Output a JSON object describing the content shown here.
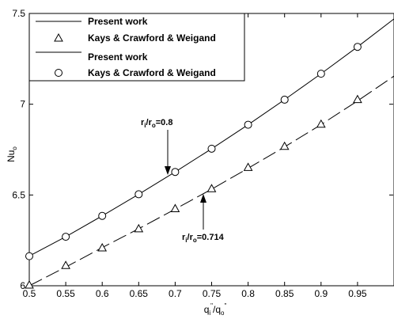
{
  "chart_data": {
    "type": "line",
    "xlabel": {
      "main": "q",
      "sub1": "i",
      "sup1": "\"",
      "sep": "/q",
      "sub2": "o",
      "sup2": "\""
    },
    "ylabel": {
      "main": "Nu",
      "sub": "o"
    },
    "xlim": [
      0.5,
      1.0
    ],
    "ylim": [
      6.0,
      7.5
    ],
    "xticks": [
      0.5,
      0.55,
      0.6,
      0.65,
      0.7,
      0.75,
      0.8,
      0.85,
      0.9,
      0.95
    ],
    "xtick_labels": [
      "0.5",
      "0.55",
      "0.6",
      "0.65",
      "0.7",
      "0.75",
      "0.8",
      "0.85",
      "0.9",
      "0.95"
    ],
    "yticks": [
      6.0,
      6.5,
      7.0,
      7.5
    ],
    "ytick_labels": [
      "6",
      "6.5",
      "7",
      "7.5"
    ],
    "grid": false,
    "legend_position": "top-left",
    "series": [
      {
        "name": "Present work",
        "style": "dashed-line",
        "color": "#000000",
        "x": [
          0.5,
          0.55,
          0.6,
          0.65,
          0.7,
          0.75,
          0.8,
          0.85,
          0.9,
          0.95,
          1.0
        ],
        "y": [
          6.0,
          6.103,
          6.21,
          6.314,
          6.422,
          6.532,
          6.647,
          6.765,
          6.888,
          7.018,
          7.155
        ]
      },
      {
        "name": "Kays & Crawford & Weigand",
        "style": "triangle-markers",
        "color": "#000000",
        "x": [
          0.5,
          0.55,
          0.6,
          0.65,
          0.7,
          0.75,
          0.8,
          0.85,
          0.9,
          0.95
        ],
        "y": [
          6.0,
          6.108,
          6.205,
          6.31,
          6.421,
          6.531,
          6.648,
          6.764,
          6.886,
          7.022
        ]
      },
      {
        "name": "Present work",
        "style": "solid-line",
        "color": "#000000",
        "x": [
          0.5,
          0.55,
          0.6,
          0.65,
          0.7,
          0.75,
          0.8,
          0.85,
          0.9,
          0.95,
          1.0
        ],
        "y": [
          6.164,
          6.27,
          6.385,
          6.504,
          6.627,
          6.755,
          6.887,
          7.025,
          7.168,
          7.316,
          7.47
        ]
      },
      {
        "name": "Kays & Crawford & Weigand",
        "style": "circle-markers",
        "color": "#000000",
        "x": [
          0.5,
          0.55,
          0.6,
          0.65,
          0.7,
          0.75,
          0.8,
          0.85,
          0.9,
          0.95
        ],
        "y": [
          6.163,
          6.27,
          6.385,
          6.504,
          6.627,
          6.755,
          6.887,
          7.025,
          7.168,
          7.316
        ]
      }
    ],
    "annotations": [
      {
        "id": "ratio-08",
        "label": "r",
        "s1": "i",
        "mid": "/r",
        "s2": "o",
        "tail": "=0.8",
        "x": 0.676,
        "y": 6.53
      },
      {
        "id": "ratio-0714",
        "label": "r",
        "s1": "i",
        "mid": "/r",
        "s2": "o",
        "tail": "=0.714",
        "x": 0.728,
        "y": 6.495
      }
    ]
  }
}
